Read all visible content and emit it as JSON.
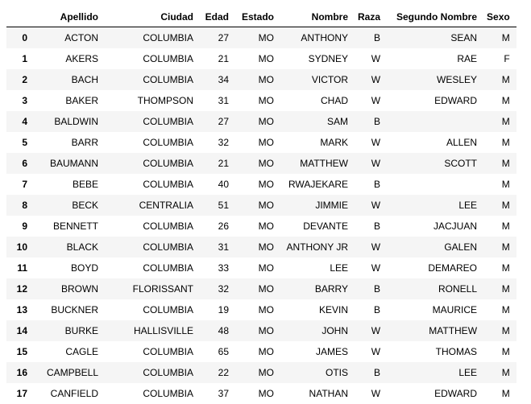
{
  "table": {
    "columns": [
      "Apellido",
      "Ciudad",
      "Edad",
      "Estado",
      "Nombre",
      "Raza",
      "Segundo Nombre",
      "Sexo"
    ],
    "index": [
      "0",
      "1",
      "2",
      "3",
      "4",
      "5",
      "6",
      "7",
      "8",
      "9",
      "10",
      "11",
      "12",
      "13",
      "14",
      "15",
      "16",
      "17"
    ],
    "rows": [
      [
        "ACTON",
        "COLUMBIA",
        "27",
        "MO",
        "ANTHONY",
        "B",
        "SEAN",
        "M"
      ],
      [
        "AKERS",
        "COLUMBIA",
        "21",
        "MO",
        "SYDNEY",
        "W",
        "RAE",
        "F"
      ],
      [
        "BACH",
        "COLUMBIA",
        "34",
        "MO",
        "VICTOR",
        "W",
        "WESLEY",
        "M"
      ],
      [
        "BAKER",
        "THOMPSON",
        "31",
        "MO",
        "CHAD",
        "W",
        "EDWARD",
        "M"
      ],
      [
        "BALDWIN",
        "COLUMBIA",
        "27",
        "MO",
        "SAM",
        "B",
        "",
        "M"
      ],
      [
        "BARR",
        "COLUMBIA",
        "32",
        "MO",
        "MARK",
        "W",
        "ALLEN",
        "M"
      ],
      [
        "BAUMANN",
        "COLUMBIA",
        "21",
        "MO",
        "MATTHEW",
        "W",
        "SCOTT",
        "M"
      ],
      [
        "BEBE",
        "COLUMBIA",
        "40",
        "MO",
        "RWAJEKARE",
        "B",
        "",
        "M"
      ],
      [
        "BECK",
        "CENTRALIA",
        "51",
        "MO",
        "JIMMIE",
        "W",
        "LEE",
        "M"
      ],
      [
        "BENNETT",
        "COLUMBIA",
        "26",
        "MO",
        "DEVANTE",
        "B",
        "JACJUAN",
        "M"
      ],
      [
        "BLACK",
        "COLUMBIA",
        "31",
        "MO",
        "ANTHONY JR",
        "W",
        "GALEN",
        "M"
      ],
      [
        "BOYD",
        "COLUMBIA",
        "33",
        "MO",
        "LEE",
        "W",
        "DEMAREO",
        "M"
      ],
      [
        "BROWN",
        "FLORISSANT",
        "32",
        "MO",
        "BARRY",
        "B",
        "RONELL",
        "M"
      ],
      [
        "BUCKNER",
        "COLUMBIA",
        "19",
        "MO",
        "KEVIN",
        "B",
        "MAURICE",
        "M"
      ],
      [
        "BURKE",
        "HALLISVILLE",
        "48",
        "MO",
        "JOHN",
        "W",
        "MATTHEW",
        "M"
      ],
      [
        "CAGLE",
        "COLUMBIA",
        "65",
        "MO",
        "JAMES",
        "W",
        "THOMAS",
        "M"
      ],
      [
        "CAMPBELL",
        "COLUMBIA",
        "22",
        "MO",
        "OTIS",
        "B",
        "LEE",
        "M"
      ],
      [
        "CANFIELD",
        "COLUMBIA",
        "37",
        "MO",
        "NATHAN",
        "W",
        "EDWARD",
        "M"
      ]
    ]
  }
}
